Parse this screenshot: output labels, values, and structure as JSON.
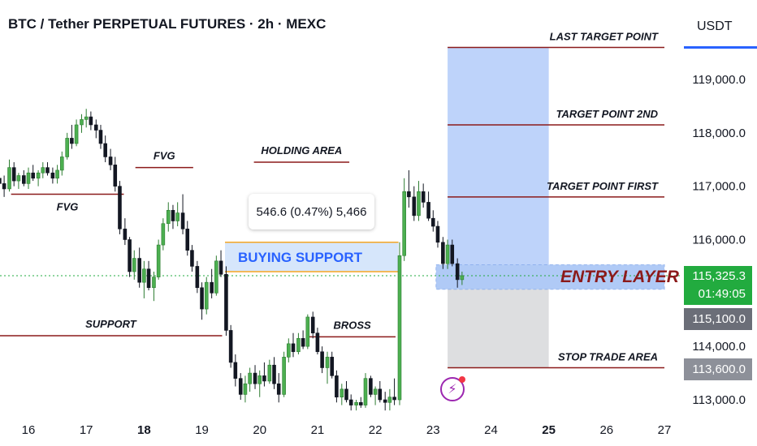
{
  "chart_data": {
    "type": "candlestick",
    "title": "BTC / Tether PERPETUAL FUTURES · 2h · MEXC",
    "currency": "USDT",
    "x_ticks": [
      "16",
      "17",
      "18",
      "19",
      "20",
      "21",
      "22",
      "23",
      "24",
      "25",
      "26",
      "27"
    ],
    "bold_x_ticks": [
      "18",
      "25"
    ],
    "y_ticks": [
      "119,000.0",
      "118,000.0",
      "117,000.0",
      "116,000.0",
      "114,000.0",
      "113,000.0"
    ],
    "ylim": [
      112800,
      120000
    ],
    "x_range_days": [
      15.5,
      27.3
    ],
    "current_price": "115,325.3",
    "countdown": "01:49:05",
    "entry_price_tag": "115,100.0",
    "stop_price_tag": "113,600.0",
    "levels": [
      {
        "label": "LAST TARGET POINT",
        "price": 119600
      },
      {
        "label": "TARGET POINT 2ND",
        "price": 118150
      },
      {
        "label": "TARGET POINT FIRST",
        "price": 116800
      },
      {
        "label": "STOP TRADE AREA",
        "price": 113600
      }
    ],
    "annotations": [
      {
        "label": "FVG",
        "price": 116850
      },
      {
        "label": "FVG",
        "price": 117350
      },
      {
        "label": "HOLDING AREA",
        "price": 117450
      },
      {
        "label": "SUPPORT",
        "price": 114200
      },
      {
        "label": "BROSS",
        "price": 114180
      }
    ],
    "buying_support": {
      "label": "BUYING SUPPORT",
      "low": 115400,
      "high": 115950
    },
    "measure": "546.6 (0.47%) 5,466",
    "entry_layer": {
      "label": "ENTRY LAYER",
      "low": 115070,
      "high": 115530
    },
    "candles": [
      {
        "t": 15.5,
        "o": 117150,
        "h": 117450,
        "l": 116800,
        "c": 117050
      },
      {
        "t": 15.58,
        "o": 117050,
        "h": 117200,
        "l": 116800,
        "c": 116950
      },
      {
        "t": 15.67,
        "o": 116950,
        "h": 117500,
        "l": 116900,
        "c": 117350
      },
      {
        "t": 15.75,
        "o": 117350,
        "h": 117450,
        "l": 117000,
        "c": 117100
      },
      {
        "t": 15.83,
        "o": 117100,
        "h": 117250,
        "l": 116950,
        "c": 117200
      },
      {
        "t": 15.92,
        "o": 117200,
        "h": 117300,
        "l": 117000,
        "c": 117050
      },
      {
        "t": 16.0,
        "o": 117050,
        "h": 117350,
        "l": 116950,
        "c": 117250
      },
      {
        "t": 16.08,
        "o": 117250,
        "h": 117400,
        "l": 117100,
        "c": 117150
      },
      {
        "t": 16.17,
        "o": 117150,
        "h": 117300,
        "l": 117000,
        "c": 117250
      },
      {
        "t": 16.25,
        "o": 117250,
        "h": 117450,
        "l": 117150,
        "c": 117350
      },
      {
        "t": 16.33,
        "o": 117350,
        "h": 117450,
        "l": 117200,
        "c": 117250
      },
      {
        "t": 16.42,
        "o": 117250,
        "h": 117350,
        "l": 117050,
        "c": 117150
      },
      {
        "t": 16.5,
        "o": 117150,
        "h": 117400,
        "l": 117050,
        "c": 117300
      },
      {
        "t": 16.58,
        "o": 117300,
        "h": 117650,
        "l": 117200,
        "c": 117550
      },
      {
        "t": 16.67,
        "o": 117550,
        "h": 118000,
        "l": 117500,
        "c": 117900
      },
      {
        "t": 16.75,
        "o": 117900,
        "h": 118150,
        "l": 117700,
        "c": 117800
      },
      {
        "t": 16.83,
        "o": 117800,
        "h": 118250,
        "l": 117750,
        "c": 118150
      },
      {
        "t": 16.92,
        "o": 118150,
        "h": 118350,
        "l": 118000,
        "c": 118250
      },
      {
        "t": 17.0,
        "o": 118250,
        "h": 118450,
        "l": 118100,
        "c": 118300
      },
      {
        "t": 17.08,
        "o": 118300,
        "h": 118400,
        "l": 118050,
        "c": 118150
      },
      {
        "t": 17.17,
        "o": 118150,
        "h": 118250,
        "l": 117900,
        "c": 118050
      },
      {
        "t": 17.25,
        "o": 118050,
        "h": 118150,
        "l": 117700,
        "c": 117800
      },
      {
        "t": 17.33,
        "o": 117800,
        "h": 117950,
        "l": 117450,
        "c": 117550
      },
      {
        "t": 17.42,
        "o": 117550,
        "h": 117700,
        "l": 117300,
        "c": 117400
      },
      {
        "t": 17.5,
        "o": 117400,
        "h": 117550,
        "l": 116900,
        "c": 117000
      },
      {
        "t": 17.58,
        "o": 117000,
        "h": 117100,
        "l": 116100,
        "c": 116200
      },
      {
        "t": 17.67,
        "o": 116200,
        "h": 116400,
        "l": 115900,
        "c": 116000
      },
      {
        "t": 17.75,
        "o": 116000,
        "h": 116050,
        "l": 115300,
        "c": 115400
      },
      {
        "t": 17.83,
        "o": 115400,
        "h": 115800,
        "l": 115250,
        "c": 115650
      },
      {
        "t": 17.92,
        "o": 115650,
        "h": 115850,
        "l": 115100,
        "c": 115200
      },
      {
        "t": 18.0,
        "o": 115200,
        "h": 115600,
        "l": 114900,
        "c": 115450
      },
      {
        "t": 18.08,
        "o": 115450,
        "h": 115600,
        "l": 115050,
        "c": 115100
      },
      {
        "t": 18.17,
        "o": 115100,
        "h": 115400,
        "l": 114850,
        "c": 115300
      },
      {
        "t": 18.25,
        "o": 115300,
        "h": 116000,
        "l": 115250,
        "c": 115900
      },
      {
        "t": 18.33,
        "o": 115900,
        "h": 116400,
        "l": 115800,
        "c": 116300
      },
      {
        "t": 18.42,
        "o": 116300,
        "h": 116700,
        "l": 116150,
        "c": 116550
      },
      {
        "t": 18.5,
        "o": 116550,
        "h": 116650,
        "l": 116200,
        "c": 116350
      },
      {
        "t": 18.58,
        "o": 116350,
        "h": 116700,
        "l": 116250,
        "c": 116500
      },
      {
        "t": 18.67,
        "o": 116500,
        "h": 116850,
        "l": 116100,
        "c": 116200
      },
      {
        "t": 18.75,
        "o": 116200,
        "h": 116350,
        "l": 115700,
        "c": 115800
      },
      {
        "t": 18.83,
        "o": 115800,
        "h": 115900,
        "l": 115400,
        "c": 115500
      },
      {
        "t": 18.92,
        "o": 115500,
        "h": 115600,
        "l": 115000,
        "c": 115100
      },
      {
        "t": 19.0,
        "o": 115100,
        "h": 115200,
        "l": 114500,
        "c": 114700
      },
      {
        "t": 19.08,
        "o": 114700,
        "h": 115300,
        "l": 114600,
        "c": 115200
      },
      {
        "t": 19.17,
        "o": 115200,
        "h": 115450,
        "l": 114900,
        "c": 115000
      },
      {
        "t": 19.25,
        "o": 115000,
        "h": 115700,
        "l": 114950,
        "c": 115600
      },
      {
        "t": 19.33,
        "o": 115600,
        "h": 115800,
        "l": 115300,
        "c": 115350
      },
      {
        "t": 19.42,
        "o": 115350,
        "h": 115500,
        "l": 114200,
        "c": 114300
      },
      {
        "t": 19.5,
        "o": 114300,
        "h": 114400,
        "l": 113600,
        "c": 113700
      },
      {
        "t": 19.58,
        "o": 113700,
        "h": 113850,
        "l": 113250,
        "c": 113400
      },
      {
        "t": 19.67,
        "o": 113400,
        "h": 113500,
        "l": 113000,
        "c": 113100
      },
      {
        "t": 19.75,
        "o": 113100,
        "h": 113450,
        "l": 112950,
        "c": 113300
      },
      {
        "t": 19.83,
        "o": 113300,
        "h": 113600,
        "l": 113150,
        "c": 113500
      },
      {
        "t": 19.92,
        "o": 113500,
        "h": 113650,
        "l": 113200,
        "c": 113300
      },
      {
        "t": 20.0,
        "o": 113300,
        "h": 113550,
        "l": 113050,
        "c": 113450
      },
      {
        "t": 20.08,
        "o": 113450,
        "h": 113700,
        "l": 113250,
        "c": 113350
      },
      {
        "t": 20.17,
        "o": 113350,
        "h": 113750,
        "l": 113300,
        "c": 113650
      },
      {
        "t": 20.25,
        "o": 113650,
        "h": 113800,
        "l": 113200,
        "c": 113300
      },
      {
        "t": 20.33,
        "o": 113300,
        "h": 113500,
        "l": 112950,
        "c": 113100
      },
      {
        "t": 20.42,
        "o": 113100,
        "h": 113900,
        "l": 113050,
        "c": 113800
      },
      {
        "t": 20.5,
        "o": 113800,
        "h": 114150,
        "l": 113700,
        "c": 114050
      },
      {
        "t": 20.58,
        "o": 114050,
        "h": 114250,
        "l": 113800,
        "c": 113900
      },
      {
        "t": 20.67,
        "o": 113900,
        "h": 114250,
        "l": 113850,
        "c": 114150
      },
      {
        "t": 20.75,
        "o": 114150,
        "h": 114300,
        "l": 113950,
        "c": 114000
      },
      {
        "t": 20.83,
        "o": 114000,
        "h": 114600,
        "l": 113950,
        "c": 114550
      },
      {
        "t": 20.92,
        "o": 114550,
        "h": 114650,
        "l": 114150,
        "c": 114250
      },
      {
        "t": 21.0,
        "o": 114250,
        "h": 114350,
        "l": 113850,
        "c": 113900
      },
      {
        "t": 21.08,
        "o": 113900,
        "h": 114000,
        "l": 113500,
        "c": 113600
      },
      {
        "t": 21.17,
        "o": 113600,
        "h": 113900,
        "l": 113300,
        "c": 113800
      },
      {
        "t": 21.25,
        "o": 113800,
        "h": 113900,
        "l": 113400,
        "c": 113450
      },
      {
        "t": 21.33,
        "o": 113450,
        "h": 113550,
        "l": 112950,
        "c": 113050
      },
      {
        "t": 21.42,
        "o": 113050,
        "h": 113300,
        "l": 112900,
        "c": 113200
      },
      {
        "t": 21.5,
        "o": 113200,
        "h": 113350,
        "l": 112950,
        "c": 113000
      },
      {
        "t": 21.58,
        "o": 113000,
        "h": 113100,
        "l": 112800,
        "c": 112900
      },
      {
        "t": 21.67,
        "o": 112900,
        "h": 113000,
        "l": 112800,
        "c": 112950
      },
      {
        "t": 21.75,
        "o": 112950,
        "h": 113050,
        "l": 112850,
        "c": 112900
      },
      {
        "t": 21.83,
        "o": 112900,
        "h": 113500,
        "l": 112850,
        "c": 113400
      },
      {
        "t": 21.92,
        "o": 113400,
        "h": 113450,
        "l": 113050,
        "c": 113100
      },
      {
        "t": 22.0,
        "o": 113100,
        "h": 113250,
        "l": 112900,
        "c": 113200
      },
      {
        "t": 22.08,
        "o": 113200,
        "h": 113350,
        "l": 112950,
        "c": 113000
      },
      {
        "t": 22.17,
        "o": 113000,
        "h": 113150,
        "l": 112800,
        "c": 112950
      },
      {
        "t": 22.25,
        "o": 112950,
        "h": 113200,
        "l": 112800,
        "c": 113050
      },
      {
        "t": 22.33,
        "o": 113050,
        "h": 113400,
        "l": 112900,
        "c": 113000
      },
      {
        "t": 22.42,
        "o": 113000,
        "h": 115950,
        "l": 112900,
        "c": 115700
      },
      {
        "t": 22.5,
        "o": 115700,
        "h": 117150,
        "l": 115600,
        "c": 116900
      },
      {
        "t": 22.58,
        "o": 116900,
        "h": 117300,
        "l": 116600,
        "c": 116800
      },
      {
        "t": 22.67,
        "o": 116800,
        "h": 117000,
        "l": 116350,
        "c": 116450
      },
      {
        "t": 22.75,
        "o": 116450,
        "h": 117100,
        "l": 116350,
        "c": 116900
      },
      {
        "t": 22.83,
        "o": 116900,
        "h": 117050,
        "l": 116600,
        "c": 116700
      },
      {
        "t": 22.92,
        "o": 116700,
        "h": 116900,
        "l": 116350,
        "c": 116400
      },
      {
        "t": 23.0,
        "o": 116400,
        "h": 116550,
        "l": 116150,
        "c": 116250
      },
      {
        "t": 23.08,
        "o": 116250,
        "h": 116350,
        "l": 115850,
        "c": 115950
      },
      {
        "t": 23.17,
        "o": 115950,
        "h": 116050,
        "l": 115450,
        "c": 115550
      },
      {
        "t": 23.25,
        "o": 115550,
        "h": 116000,
        "l": 115450,
        "c": 115900
      },
      {
        "t": 23.33,
        "o": 115900,
        "h": 116000,
        "l": 115500,
        "c": 115550
      },
      {
        "t": 23.42,
        "o": 115550,
        "h": 115650,
        "l": 115100,
        "c": 115250
      },
      {
        "t": 23.5,
        "o": 115250,
        "h": 115400,
        "l": 115150,
        "c": 115325
      }
    ]
  },
  "colors": {
    "up": "#2e7d32",
    "down": "#131722",
    "level_line": "#8b1a1a",
    "target_zone": "#a8c4f8",
    "stop_zone": "#d9dadd",
    "entry_zone": "#8fb4f3",
    "buy_zone": "#d6e6fb",
    "buy_border": "#f5a623",
    "current_price_bg": "#22ab3f",
    "entry_tag_bg": "#6b6e78",
    "stop_tag_bg": "#8d9099",
    "price_line": "#22ab3f"
  },
  "icons": {
    "alert": "lightning-icon"
  }
}
